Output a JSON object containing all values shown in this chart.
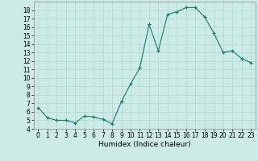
{
  "x": [
    0,
    1,
    2,
    3,
    4,
    5,
    6,
    7,
    8,
    9,
    10,
    11,
    12,
    13,
    14,
    15,
    16,
    17,
    18,
    19,
    20,
    21,
    22,
    23
  ],
  "y": [
    6.5,
    5.3,
    5.0,
    5.0,
    4.7,
    5.5,
    5.4,
    5.1,
    4.6,
    7.2,
    9.3,
    11.2,
    16.3,
    13.2,
    17.5,
    17.8,
    18.3,
    18.3,
    17.2,
    15.3,
    13.0,
    13.2,
    12.3,
    11.8
  ],
  "xlabel": "Humidex (Indice chaleur)",
  "xlim": [
    -0.5,
    23.5
  ],
  "ylim": [
    4,
    19
  ],
  "yticks": [
    4,
    5,
    6,
    7,
    8,
    9,
    10,
    11,
    12,
    13,
    14,
    15,
    16,
    17,
    18
  ],
  "xticks": [
    0,
    1,
    2,
    3,
    4,
    5,
    6,
    7,
    8,
    9,
    10,
    11,
    12,
    13,
    14,
    15,
    16,
    17,
    18,
    19,
    20,
    21,
    22,
    23
  ],
  "line_color": "#1a7a6e",
  "marker": "+",
  "bg_color": "#cceae6",
  "grid_color": "#b0d8d3",
  "label_fontsize": 6.5,
  "tick_fontsize": 5.5
}
